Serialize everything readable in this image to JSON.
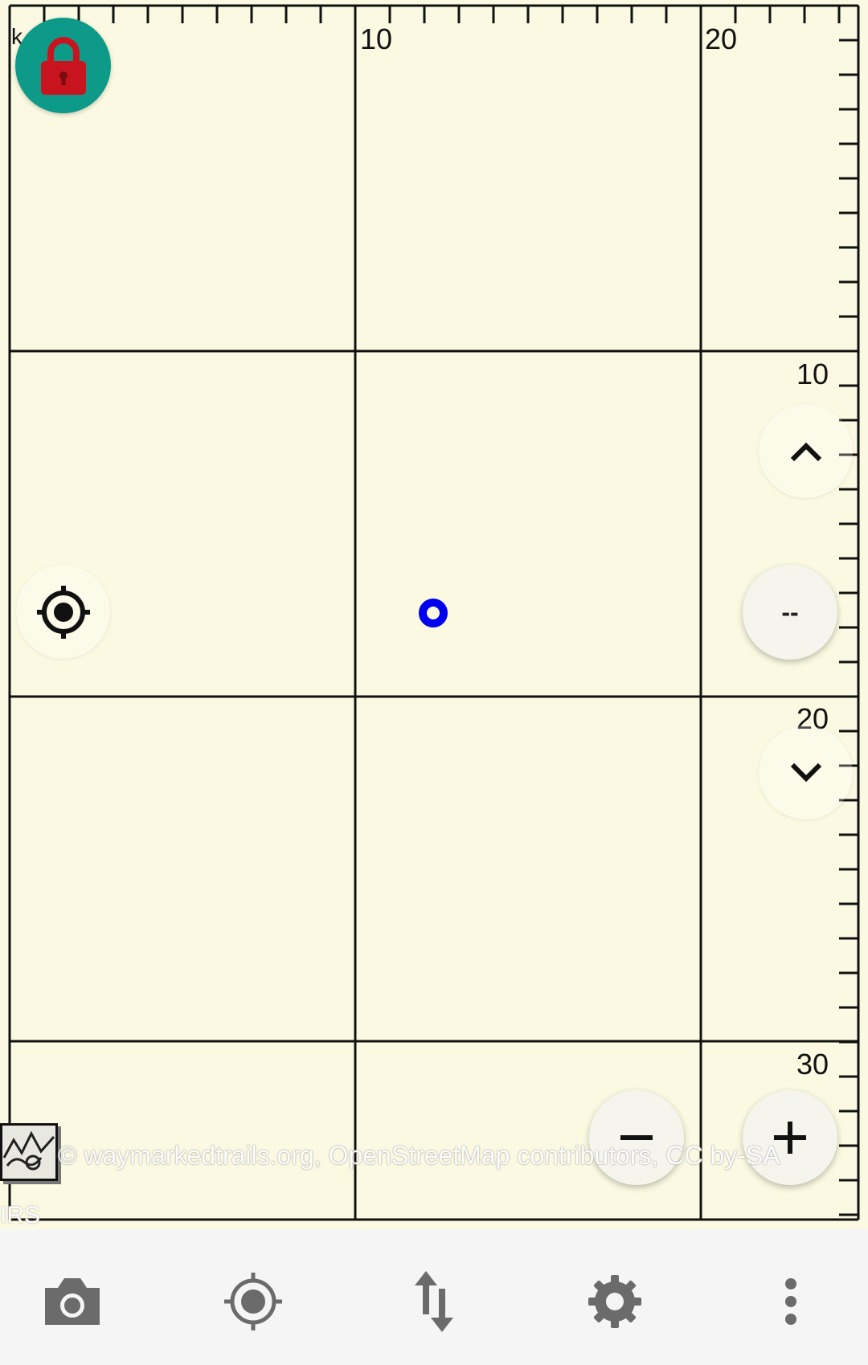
{
  "map": {
    "background": "#fbf9e1",
    "ruler_top_labels": [
      "k",
      "10",
      "20"
    ],
    "ruler_right_labels": [
      "10",
      "20",
      "30"
    ],
    "attribution": "© waymarkedtrails.org, OpenStreetMap contributors, CC by-SA",
    "irs": "IRS",
    "location_dot_color": "#0000ee"
  },
  "buttons": {
    "lock": {
      "icon": "lock-icon",
      "color": "#0e9a89"
    },
    "locate": {
      "icon": "crosshair-icon"
    },
    "scroll_up": {
      "icon": "chevron-up-icon"
    },
    "scroll_down": {
      "icon": "chevron-down-icon"
    },
    "scale": {
      "label": "--"
    },
    "zoom_out": {
      "icon": "minus-icon"
    },
    "zoom_in": {
      "icon": "plus-icon"
    }
  },
  "toolbar": {
    "items": [
      {
        "icon": "camera-icon"
      },
      {
        "icon": "gps-icon"
      },
      {
        "icon": "sort-arrows-icon"
      },
      {
        "icon": "gear-icon"
      },
      {
        "icon": "more-vert-icon"
      }
    ]
  }
}
